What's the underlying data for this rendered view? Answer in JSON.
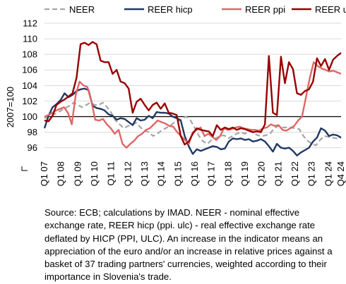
{
  "chart_data": {
    "type": "line",
    "title": "",
    "xlabel": "",
    "ylabel": "2007=100",
    "ylim": [
      94.7,
      112
    ],
    "y_ticks": [
      96,
      98,
      100,
      102,
      104,
      106,
      108,
      110,
      112
    ],
    "x_start": "2007Q1",
    "x_end": "2024Q4",
    "x_tick_labels": [
      "Q1 07",
      "Q1 08",
      "Q1 09",
      "Q1 10",
      "Q1 11",
      "Q1 12",
      "Q1 13",
      "Q1 14",
      "Q1 15",
      "Q1 16",
      "Q1 17",
      "Q1 18",
      "Q1 19",
      "Q1 20",
      "Q1 21",
      "Q1 22",
      "Q1 23",
      "Q1 24",
      "Q4 24"
    ],
    "reference_line": 100,
    "grid": "horizontal",
    "legend_position": "top",
    "series": [
      {
        "name": "NEER",
        "color": "#a6a6a6",
        "dash": true,
        "values": [
          99.8,
          100.0,
          100.2,
          100.5,
          100.8,
          101.1,
          101.4,
          101.8,
          101.5,
          101.2,
          101.5,
          101.8,
          101.5,
          101.5,
          101.8,
          101.2,
          100.5,
          99.5,
          99.0,
          98.5,
          98.8,
          99.0,
          99.2,
          98.6,
          98.2,
          98.0,
          97.5,
          97.8,
          98.2,
          98.5,
          98.8,
          99.2,
          99.4,
          99.8,
          100.0,
          99.5,
          98.5,
          97.5,
          96.8,
          96.5,
          97.0,
          97.2,
          97.5,
          97.6,
          97.2,
          97.5,
          97.8,
          98.0,
          97.8,
          98.2,
          98.0,
          97.6,
          97.5,
          97.6,
          97.8,
          98.5,
          98.8,
          98.6,
          98.6,
          98.6,
          98.5,
          98.4,
          97.5,
          96.9,
          96.5,
          96.3,
          97.0,
          97.5,
          97.4,
          97.3,
          97.2,
          97.3
        ]
      },
      {
        "name": "REER hicp",
        "color": "#203864",
        "dash": false,
        "values": [
          98.5,
          100.1,
          101.2,
          101.6,
          102.1,
          103.0,
          102.5,
          102.8,
          103.3,
          103.5,
          103.6,
          103.4,
          101.4,
          101.1,
          101.0,
          100.8,
          100.3,
          100.1,
          99.6,
          99.8,
          99.7,
          99.3,
          98.9,
          99.8,
          99.5,
          99.6,
          100.1,
          99.8,
          100.6,
          100.5,
          100.5,
          100.4,
          100.0,
          99.8,
          99.5,
          97.5,
          96.2,
          95.2,
          95.8,
          95.6,
          95.8,
          96.0,
          96.2,
          96.1,
          95.8,
          95.9,
          96.8,
          97.2,
          97.1,
          97.2,
          97.0,
          97.1,
          96.8,
          96.9,
          97.1,
          96.8,
          96.2,
          95.5,
          96.5,
          96.0,
          95.9,
          96.0,
          95.6,
          95.0,
          95.4,
          95.7,
          96.0,
          96.8,
          97.3,
          98.5,
          98.2,
          97.5,
          97.7,
          97.6,
          97.3
        ]
      },
      {
        "name": "REER ppi",
        "color": "#e06666",
        "dash": false,
        "values": [
          100.0,
          100.2,
          100.5,
          100.8,
          101.0,
          101.2,
          100.5,
          99.0,
          102.8,
          104.5,
          104.0,
          103.8,
          102.0,
          99.6,
          99.5,
          99.7,
          99.0,
          98.5,
          97.8,
          98.3,
          96.5,
          96.0,
          96.5,
          96.9,
          97.5,
          97.8,
          98.3,
          98.5,
          99.0,
          99.5,
          99.3,
          99.1,
          98.8,
          98.7,
          98.0,
          97.5,
          97.0,
          96.5,
          98.0,
          98.3,
          98.6,
          97.5,
          97.8,
          97.4,
          97.0,
          97.5,
          98.5,
          98.3,
          98.4,
          98.6,
          98.7,
          98.5,
          98.4,
          98.3,
          98.3,
          98.2,
          98.5,
          98.6,
          99.0,
          98.8,
          98.9,
          98.3,
          98.2,
          98.5,
          98.8,
          99.5,
          100.0,
          102.5,
          105.0,
          107.0,
          106.5,
          106.2,
          106.0,
          105.8,
          105.9,
          105.7,
          105.5
        ]
      },
      {
        "name": "REER ulc",
        "color": "#990000",
        "dash": false,
        "values": [
          99.5,
          99.4,
          100.1,
          101.5,
          101.9,
          102.2,
          102.6,
          103.0,
          105.0,
          109.3,
          109.5,
          109.2,
          109.6,
          109.3,
          107.2,
          107.0,
          107.0,
          105.5,
          106.0,
          104.5,
          104.3,
          103.6,
          100.5,
          101.9,
          102.3,
          101.5,
          100.8,
          101.5,
          101.8,
          101.0,
          101.7,
          100.5,
          100.4,
          100.2,
          97.5,
          96.4,
          96.8,
          97.8,
          98.5,
          98.3,
          98.2,
          98.1,
          97.5,
          98.9,
          98.3,
          98.6,
          98.4,
          98.6,
          98.3,
          98.5,
          98.4,
          98.2,
          98.0,
          98.1,
          98.0,
          99.0,
          107.8,
          100.5,
          100.2,
          107.7,
          104.3,
          107.0,
          106.1,
          103.0,
          102.8,
          103.3,
          103.5,
          104.5,
          107.5,
          106.5,
          107.4,
          106.0,
          107.3,
          107.8,
          108.2
        ]
      }
    ]
  },
  "footnote": {
    "text": "Source: ECB; calculations by IMAD. NEER - nominal effective exchange rate, REER hicp (ppi. ulc) - real effective exchange rate deflated by HICP (PPI, ULC). An increase in the indicator means an appreciation of the euro and/or an increase in relative prices against a basket of 37 trading partners' currencies, weighted according to their importance in Slovenia's trade."
  }
}
